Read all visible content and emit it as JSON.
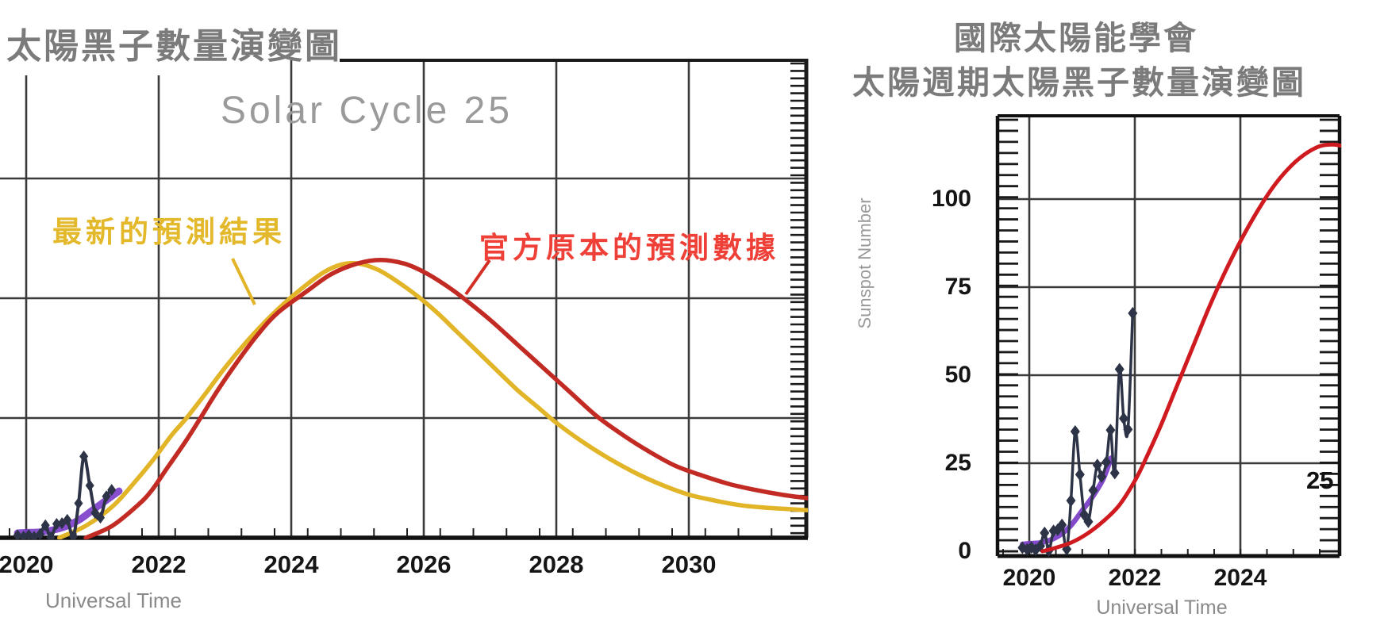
{
  "page": {
    "background": "#ffffff"
  },
  "chart_data": [
    {
      "id": "sunspot-forecast-comparison",
      "type": "line",
      "title": "太陽黑子數量演變圖",
      "inner_title": "Solar Cycle 25",
      "xlabel": "Universal Time",
      "x_ticks": [
        "2020",
        "2022",
        "2024",
        "2026",
        "2028",
        "2030"
      ],
      "x_range": [
        2019.6,
        2031.85
      ],
      "y_range": [
        0,
        200
      ],
      "y_gridline_step": 50,
      "grid": true,
      "legend_position": "none",
      "annotations": {
        "updated_label": {
          "text": "最新的預測結果",
          "color": "#e3b92b"
        },
        "official_label": {
          "text": "官方原本的預測數據",
          "color": "#ef4038"
        }
      },
      "series": [
        {
          "name": "observed-monthly-sunspots",
          "color": "#2e3447",
          "marker": "diamond",
          "points": [
            [
              2019.87,
              1.0
            ],
            [
              2019.96,
              0.5
            ],
            [
              2020.04,
              1.1
            ],
            [
              2020.12,
              0.4
            ],
            [
              2020.21,
              1.5
            ],
            [
              2020.29,
              5.2
            ],
            [
              2020.37,
              0.2
            ],
            [
              2020.46,
              5.8
            ],
            [
              2020.54,
              6.1
            ],
            [
              2020.62,
              7.5
            ],
            [
              2020.71,
              0.6
            ],
            [
              2020.79,
              14.4
            ],
            [
              2020.87,
              34.0
            ],
            [
              2020.96,
              21.8
            ],
            [
              2021.04,
              10.4
            ],
            [
              2021.12,
              8.4
            ],
            [
              2021.21,
              17.3
            ],
            [
              2021.29,
              20.0
            ]
          ]
        },
        {
          "name": "observed-smoothed",
          "color": "#7a3bc8",
          "points": [
            [
              2019.87,
              2.0
            ],
            [
              2020.0,
              2.2
            ],
            [
              2020.2,
              2.4
            ],
            [
              2020.4,
              3.2
            ],
            [
              2020.6,
              4.8
            ],
            [
              2020.8,
              7.5
            ],
            [
              2021.0,
              11.5
            ],
            [
              2021.2,
              15.5
            ],
            [
              2021.4,
              19.5
            ]
          ]
        },
        {
          "name": "updated-forecast",
          "label": "最新的預測結果",
          "color": "#e2b427",
          "points": [
            [
              2020.5,
              0
            ],
            [
              2020.9,
              5
            ],
            [
              2021.3,
              13
            ],
            [
              2021.6,
              22
            ],
            [
              2021.9,
              32
            ],
            [
              2022.2,
              43
            ],
            [
              2022.42,
              50
            ],
            [
              2022.7,
              60
            ],
            [
              2023.0,
              71
            ],
            [
              2023.3,
              81
            ],
            [
              2023.6,
              90
            ],
            [
              2023.9,
              98
            ],
            [
              2024.2,
              105
            ],
            [
              2024.5,
              111
            ],
            [
              2024.75,
              114
            ],
            [
              2025.0,
              114.5
            ],
            [
              2025.3,
              112
            ],
            [
              2025.6,
              107
            ],
            [
              2025.9,
              101
            ],
            [
              2026.2,
              94
            ],
            [
              2026.5,
              86
            ],
            [
              2026.8,
              78
            ],
            [
              2027.1,
              70
            ],
            [
              2027.4,
              62
            ],
            [
              2027.7,
              55
            ],
            [
              2028.0,
              48
            ],
            [
              2028.4,
              40
            ],
            [
              2028.8,
              33
            ],
            [
              2029.2,
              27
            ],
            [
              2029.6,
              22
            ],
            [
              2030.0,
              18
            ],
            [
              2030.4,
              15.5
            ],
            [
              2030.8,
              13.5
            ],
            [
              2031.2,
              12.5
            ],
            [
              2031.8,
              11.5
            ]
          ]
        },
        {
          "name": "official-forecast",
          "label": "官方原本的預測數據",
          "color": "#c22b23",
          "points": [
            [
              2020.9,
              0
            ],
            [
              2021.3,
              5
            ],
            [
              2021.7,
              14
            ],
            [
              2021.9,
              20
            ],
            [
              2022.1,
              28
            ],
            [
              2022.4,
              40
            ],
            [
              2022.63,
              50
            ],
            [
              2022.9,
              62
            ],
            [
              2023.2,
              74
            ],
            [
              2023.5,
              85
            ],
            [
              2023.8,
              94
            ],
            [
              2024.24,
              103
            ],
            [
              2024.6,
              110
            ],
            [
              2025.0,
              114.5
            ],
            [
              2025.35,
              116
            ],
            [
              2025.7,
              114.5
            ],
            [
              2026.0,
              111
            ],
            [
              2026.3,
              106
            ],
            [
              2026.6,
              100
            ],
            [
              2027.0,
              91
            ],
            [
              2027.4,
              81
            ],
            [
              2027.8,
              71
            ],
            [
              2028.2,
              61
            ],
            [
              2028.6,
              51
            ],
            [
              2029.0,
              43
            ],
            [
              2029.4,
              36
            ],
            [
              2029.8,
              30
            ],
            [
              2030.2,
              26
            ],
            [
              2030.6,
              22.5
            ],
            [
              2031.0,
              20
            ],
            [
              2031.4,
              18
            ],
            [
              2031.8,
              16.5
            ]
          ]
        }
      ]
    },
    {
      "id": "official-forecast-detail",
      "type": "line",
      "title_line1": "國際太陽能學會",
      "title_line2": "太陽週期太陽黑子數量演變圖",
      "xlabel": "Universal Time",
      "ylabel": "Sunspot Number",
      "cycle_label": "25",
      "x_ticks": [
        "2020",
        "2022",
        "2024"
      ],
      "y_ticks": [
        "0",
        "25",
        "50",
        "75",
        "100"
      ],
      "x_range": [
        2019.6,
        2025.95
      ],
      "y_range": [
        0,
        124
      ],
      "grid": true,
      "legend_position": "none",
      "series": [
        {
          "name": "observed-monthly-sunspots",
          "color": "#2e3447",
          "marker": "diamond",
          "points": [
            [
              2019.87,
              1.0
            ],
            [
              2019.96,
              0.5
            ],
            [
              2020.04,
              1.1
            ],
            [
              2020.12,
              0.4
            ],
            [
              2020.21,
              1.5
            ],
            [
              2020.29,
              5.2
            ],
            [
              2020.37,
              0.2
            ],
            [
              2020.46,
              5.8
            ],
            [
              2020.54,
              6.1
            ],
            [
              2020.62,
              7.5
            ],
            [
              2020.71,
              0.6
            ],
            [
              2020.79,
              14.4
            ],
            [
              2020.87,
              34.0
            ],
            [
              2020.96,
              21.8
            ],
            [
              2021.04,
              10.4
            ],
            [
              2021.12,
              8.4
            ],
            [
              2021.21,
              17.3
            ],
            [
              2021.29,
              24.5
            ],
            [
              2021.37,
              21.2
            ],
            [
              2021.46,
              25.3
            ],
            [
              2021.54,
              34.4
            ],
            [
              2021.62,
              22.2
            ],
            [
              2021.71,
              51.7
            ],
            [
              2021.79,
              37.7
            ],
            [
              2021.87,
              34.6
            ],
            [
              2021.96,
              67.6
            ]
          ]
        },
        {
          "name": "observed-smoothed",
          "color": "#7a3bc8",
          "points": [
            [
              2019.87,
              2.0
            ],
            [
              2020.0,
              2.2
            ],
            [
              2020.2,
              2.4
            ],
            [
              2020.4,
              3.2
            ],
            [
              2020.6,
              4.8
            ],
            [
              2020.8,
              7.5
            ],
            [
              2021.0,
              11.5
            ],
            [
              2021.2,
              15.5
            ],
            [
              2021.4,
              20.5
            ],
            [
              2021.55,
              26.5
            ]
          ]
        },
        {
          "name": "official-forecast",
          "color": "#cf1b20",
          "points": [
            [
              2020.25,
              0
            ],
            [
              2020.5,
              1
            ],
            [
              2020.8,
              2.5
            ],
            [
              2021.1,
              5
            ],
            [
              2021.4,
              8.5
            ],
            [
              2021.7,
              13
            ],
            [
              2022.0,
              20
            ],
            [
              2022.2,
              26
            ],
            [
              2022.5,
              36
            ],
            [
              2022.8,
              47
            ],
            [
              2023.1,
              58
            ],
            [
              2023.4,
              69
            ],
            [
              2023.7,
              79
            ],
            [
              2024.0,
              88
            ],
            [
              2024.3,
              96
            ],
            [
              2024.6,
              103
            ],
            [
              2024.9,
              108.5
            ],
            [
              2025.2,
              112.5
            ],
            [
              2025.5,
              115
            ],
            [
              2025.75,
              115.5
            ],
            [
              2025.95,
              115
            ]
          ]
        }
      ]
    }
  ]
}
